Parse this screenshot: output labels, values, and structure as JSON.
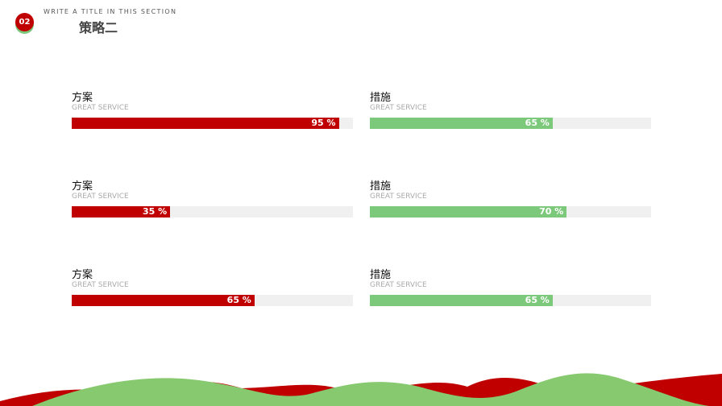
{
  "header": {
    "number": "02",
    "caption": "WRITE A TITLE IN THIS SECTION",
    "title": "策略二"
  },
  "bars": [
    {
      "title": "方案",
      "subtitle": "GREAT SERVICE",
      "value": 95,
      "label": "95 %",
      "color": "#c00000"
    },
    {
      "title": "措施",
      "subtitle": "GREAT SERVICE",
      "value": 65,
      "label": "65 %",
      "color": "#7cc97c"
    },
    {
      "title": "方案",
      "subtitle": "GREAT SERVICE",
      "value": 35,
      "label": "35 %",
      "color": "#c00000"
    },
    {
      "title": "措施",
      "subtitle": "GREAT SERVICE",
      "value": 70,
      "label": "70 %",
      "color": "#7cc97c"
    },
    {
      "title": "方案",
      "subtitle": "GREAT SERVICE",
      "value": 65,
      "label": "65 %",
      "color": "#c00000"
    },
    {
      "title": "措施",
      "subtitle": "GREAT SERVICE",
      "value": 65,
      "label": "65 %",
      "color": "#7cc97c"
    }
  ]
}
